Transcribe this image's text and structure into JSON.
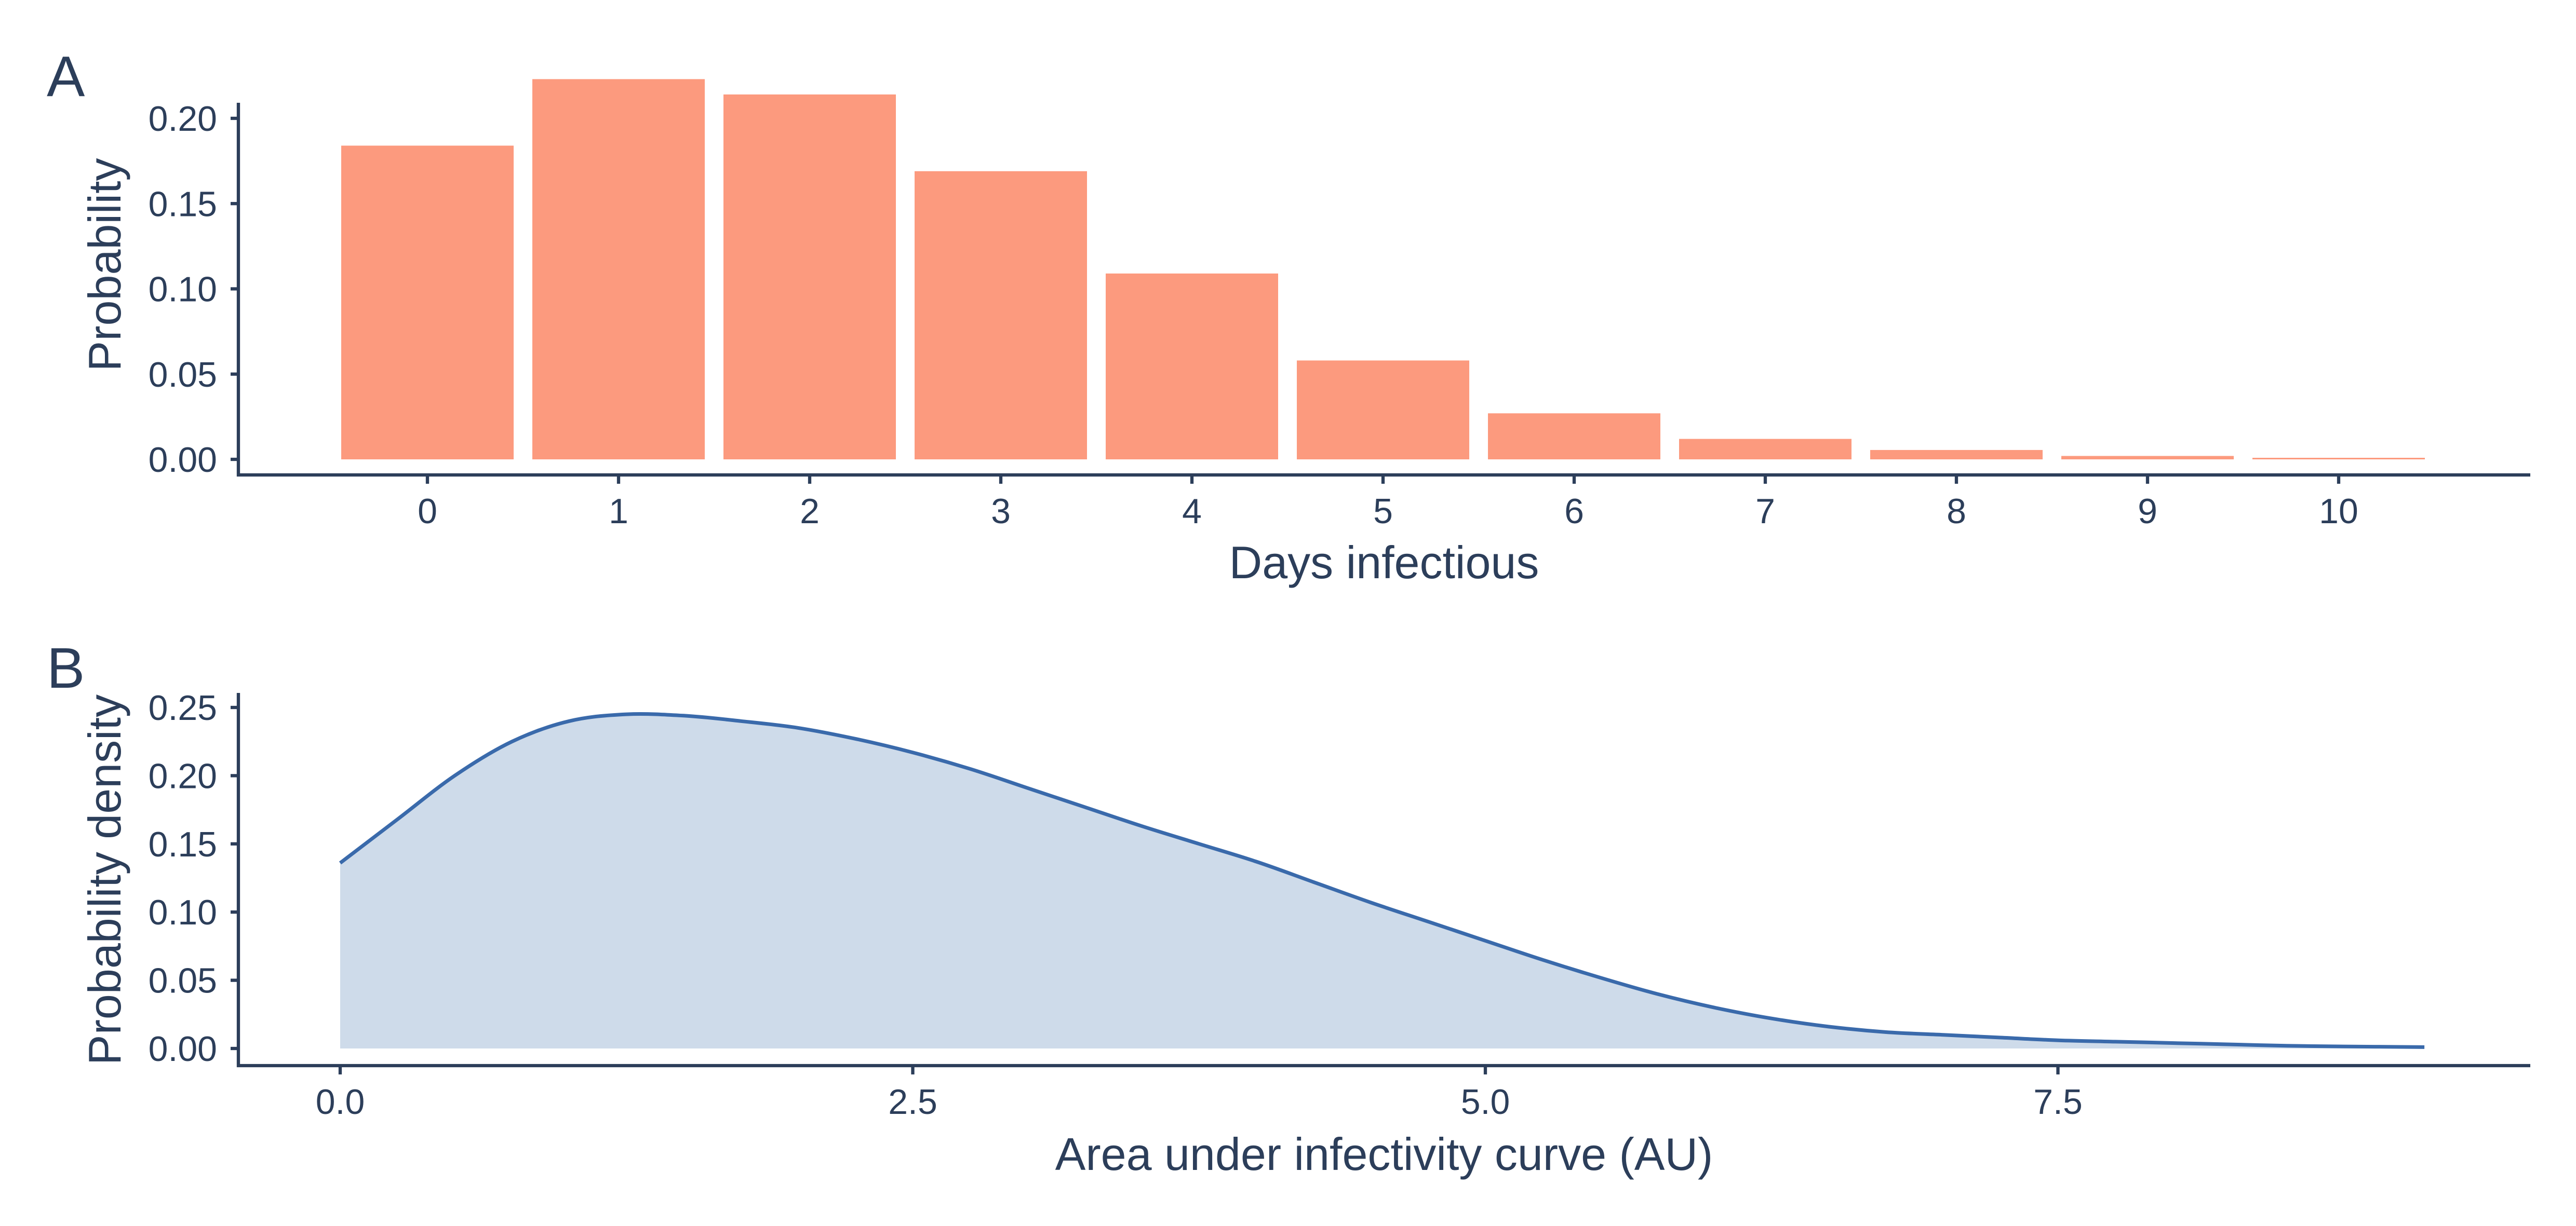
{
  "chart_data": [
    {
      "panel": "A",
      "type": "bar",
      "xlabel": "Days infectious",
      "ylabel": "Probability",
      "categories": [
        "0",
        "1",
        "2",
        "3",
        "4",
        "5",
        "6",
        "7",
        "8",
        "9",
        "10"
      ],
      "values": [
        0.184,
        0.223,
        0.214,
        0.169,
        0.109,
        0.058,
        0.027,
        0.012,
        0.0055,
        0.002,
        0.0008
      ],
      "ylim": [
        0,
        0.23
      ],
      "yticks": [
        "0.00",
        "0.05",
        "0.10",
        "0.15",
        "0.20"
      ],
      "bar_color": "#fc9a7e",
      "grid": false
    },
    {
      "panel": "B",
      "type": "area",
      "xlabel": "Area under infectivity curve (AU)",
      "ylabel": "Probability density",
      "x": [
        0.0,
        0.25,
        0.5,
        0.75,
        1.0,
        1.25,
        1.5,
        1.75,
        2.0,
        2.25,
        2.5,
        2.75,
        3.0,
        3.25,
        3.5,
        3.75,
        4.0,
        4.25,
        4.5,
        4.75,
        5.0,
        5.25,
        5.5,
        5.75,
        6.0,
        6.25,
        6.5,
        6.75,
        7.0,
        7.25,
        7.5,
        7.75,
        8.0,
        8.25,
        8.5,
        8.75,
        9.1
      ],
      "y": [
        0.136,
        0.168,
        0.2,
        0.225,
        0.24,
        0.245,
        0.244,
        0.24,
        0.235,
        0.227,
        0.217,
        0.205,
        0.191,
        0.177,
        0.163,
        0.15,
        0.137,
        0.122,
        0.107,
        0.093,
        0.079,
        0.065,
        0.052,
        0.04,
        0.03,
        0.022,
        0.016,
        0.012,
        0.01,
        0.008,
        0.006,
        0.005,
        0.004,
        0.003,
        0.002,
        0.0015,
        0.001
      ],
      "xlim": [
        -0.45,
        9.55
      ],
      "ylim": [
        0,
        0.255
      ],
      "xticks": [
        "0.0",
        "2.5",
        "5.0",
        "7.5"
      ],
      "yticks": [
        "0.00",
        "0.05",
        "0.10",
        "0.15",
        "0.20",
        "0.25"
      ],
      "line_color": "#3a6aab",
      "fill_color": "#cedbea",
      "grid": false
    }
  ]
}
